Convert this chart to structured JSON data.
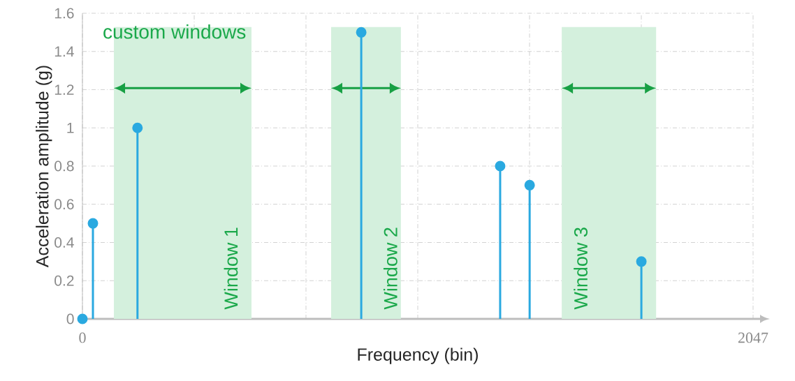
{
  "chart_data": {
    "type": "lollipop",
    "xlabel": "Frequency (bin)",
    "ylabel": "Acceleration amplitude (g)",
    "x": [
      0,
      32,
      168,
      851,
      1275,
      1365,
      1706
    ],
    "series": [
      {
        "color": "#2aa9e0",
        "values": [
          0,
          0.5,
          1.0,
          1.5,
          0.8,
          0.7,
          0.3
        ]
      }
    ],
    "marker": "circle",
    "xlim": [
      0,
      2047
    ],
    "xticks": [
      0,
      {
        "value": 341.2,
        "label": null
      },
      {
        "value": 682.3,
        "label": null
      },
      {
        "value": 1023.5,
        "label": null
      },
      {
        "value": 1364.7,
        "label": null
      },
      {
        "value": 1705.8,
        "label": null
      },
      2047
    ],
    "ylim": [
      0,
      1.6
    ],
    "yticks": [
      0,
      0.2,
      0.4,
      0.6,
      0.8,
      1,
      1.2,
      1.4,
      1.6
    ],
    "grid": true,
    "bands": [
      {
        "axis": "x",
        "from": 96,
        "to": 516,
        "label": "Window 1",
        "color": "#d4f0dd"
      },
      {
        "axis": "x",
        "from": 759,
        "to": 972,
        "label": "Window 2",
        "color": "#d4f0dd"
      },
      {
        "axis": "x",
        "from": 1463,
        "to": 1751,
        "label": "Window 3",
        "color": "#d4f0dd"
      }
    ],
    "annotations": [
      "custom windows"
    ]
  }
}
